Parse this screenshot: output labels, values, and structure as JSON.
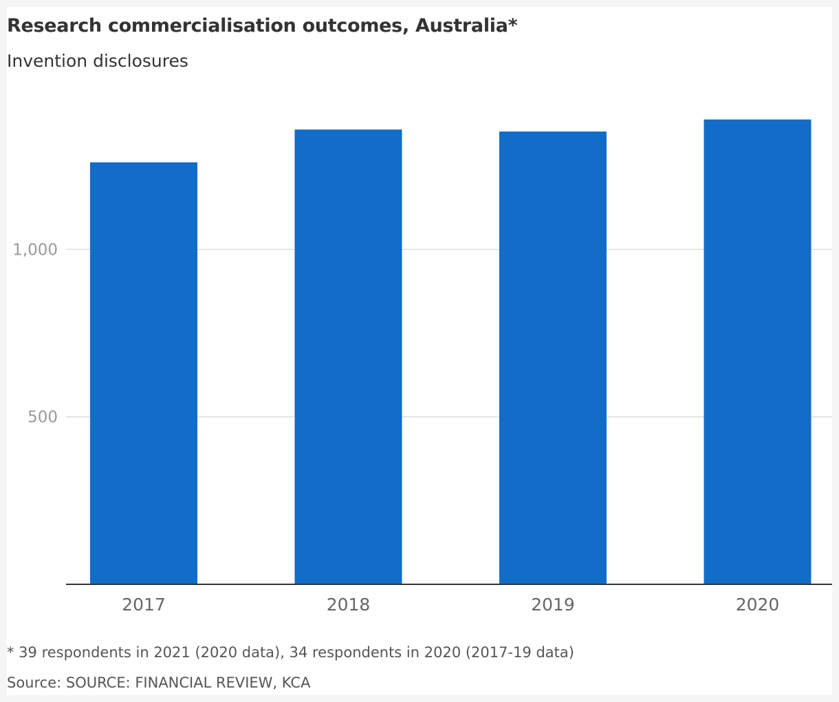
{
  "chart_data": {
    "type": "bar",
    "title": "Research commercialisation outcomes, Australia*",
    "subtitle": "Invention disclosures",
    "categories": [
      "2017",
      "2018",
      "2019",
      "2020"
    ],
    "values": [
      1260,
      1358,
      1352,
      1388
    ],
    "ylim": [
      0,
      1500
    ],
    "yticks": [
      500,
      1000
    ],
    "ytick_labels": [
      "500",
      "1,000"
    ],
    "grid": true,
    "bar_color": "#116dc8",
    "footnote": "* 39 respondents in 2021 (2020 data), 34 respondents in 2020 (2017-19 data)",
    "source": "Source: SOURCE: FINANCIAL REVIEW, KCA"
  }
}
